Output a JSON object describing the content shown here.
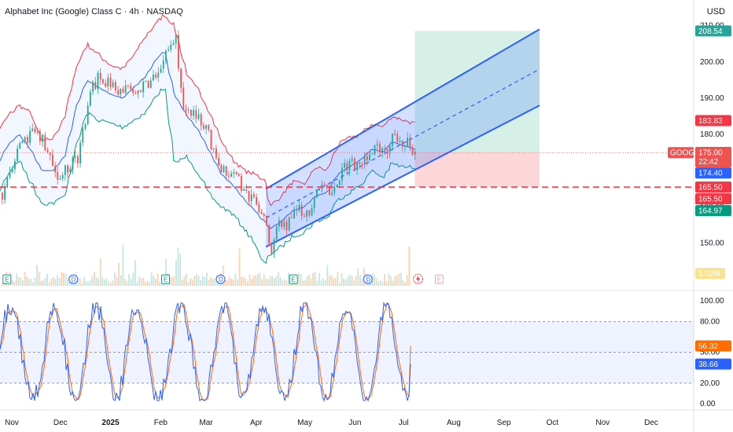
{
  "header": {
    "title": "Alphabet Inc (Google) Class C · 4h · NASDAQ",
    "currency": "USD"
  },
  "colors": {
    "up": "#26a69a",
    "down": "#ef5350",
    "channel": "#2962ff",
    "bb_upper": "#f23645",
    "bb_lower": "#089981",
    "bb_basis": "#2962ff",
    "stoch_k": "#2962ff",
    "stoch_d": "#ff6d00",
    "target_zone": "#d1eee5",
    "stop_zone": "#fbd3d5",
    "support_line": "#f23645"
  },
  "chart_data": [
    {
      "type": "line",
      "name": "price",
      "title": "Alphabet Inc (Google) Class C · 4h · NASDAQ",
      "ylim": [
        143,
        211
      ],
      "y_ticks": [
        150,
        160,
        170,
        180,
        190,
        200,
        210
      ],
      "y_tick_labels": [
        "150.00",
        "160.00",
        "170.00",
        "180.00",
        "190.00",
        "200.00",
        "210.00"
      ],
      "x_labels": [
        "Nov",
        "Dec",
        "2025",
        "Feb",
        "Mar",
        "Apr",
        "May",
        "Jun",
        "Jul",
        "Aug",
        "Sep",
        "Oct",
        "Nov",
        "Dec"
      ],
      "x_dates": [
        "2024-11-01",
        "2024-12-01",
        "2025-01-01",
        "2025-02-01",
        "2025-03-01",
        "2025-04-01",
        "2025-05-01",
        "2025-06-01",
        "2025-07-01",
        "2025-08-01",
        "2025-09-01",
        "2025-10-01",
        "2025-11-01",
        "2025-12-01"
      ],
      "price_path": {
        "dates": [
          "2024-10-16",
          "2024-10-23",
          "2024-10-30",
          "2024-11-06",
          "2024-11-13",
          "2024-11-20",
          "2024-11-27",
          "2024-12-04",
          "2024-12-11",
          "2024-12-18",
          "2024-12-25",
          "2025-01-02",
          "2025-01-09",
          "2025-01-16",
          "2025-01-23",
          "2025-01-30",
          "2025-02-04",
          "2025-02-10",
          "2025-02-18",
          "2025-02-25",
          "2025-03-04",
          "2025-03-11",
          "2025-03-18",
          "2025-03-25",
          "2025-04-01",
          "2025-04-04",
          "2025-04-07",
          "2025-04-10",
          "2025-04-17",
          "2025-04-24",
          "2025-05-01",
          "2025-05-08",
          "2025-05-15",
          "2025-05-22",
          "2025-05-29",
          "2025-06-05",
          "2025-06-12",
          "2025-06-19",
          "2025-06-24",
          "2025-07-01",
          "2025-07-08"
        ],
        "close": [
          164,
          172,
          178,
          182,
          176,
          168,
          170,
          174,
          191,
          197,
          193,
          192,
          191,
          194,
          197,
          203,
          207,
          185,
          186,
          180,
          172,
          169,
          166,
          162,
          157,
          154,
          148,
          156,
          155,
          160,
          158,
          165,
          163,
          170,
          172,
          173,
          177,
          176,
          180,
          178,
          175
        ]
      },
      "bollinger": {
        "upper": [
          172,
          180,
          185,
          188,
          186,
          178,
          179,
          185,
          198,
          205,
          202,
          199,
          198,
          202,
          207,
          211,
          213,
          210,
          196,
          192,
          186,
          178,
          173,
          170,
          169,
          168,
          168,
          160,
          163,
          167,
          166,
          171,
          170,
          177,
          179,
          180,
          183,
          182,
          185,
          184,
          183
        ],
        "lower": [
          158,
          163,
          169,
          173,
          167,
          161,
          161,
          163,
          176,
          186,
          184,
          183,
          182,
          184,
          186,
          191,
          193,
          172,
          174,
          169,
          163,
          160,
          158,
          154,
          150,
          146,
          144,
          147,
          149,
          152,
          153,
          156,
          157,
          162,
          164,
          166,
          170,
          168,
          172,
          171,
          171
        ],
        "basis": [
          165,
          171,
          177,
          180,
          176,
          170,
          170,
          174,
          187,
          195,
          193,
          191,
          190,
          193,
          196,
          201,
          203,
          191,
          185,
          181,
          175,
          169,
          166,
          162,
          159,
          157,
          156,
          154,
          156,
          159,
          160,
          163,
          164,
          169,
          171,
          173,
          176,
          175,
          178,
          177,
          176
        ]
      },
      "price_labels": {
        "target": "208.54",
        "upper_band": "183.83",
        "last_close": "175.05",
        "ticker": "GOOG",
        "current_price": "175.00",
        "countdown": "22:42",
        "basis": "174.40",
        "support_1": "165.50",
        "support_2": "165.50",
        "lower_band": "164.97",
        "volume": "1.02M"
      },
      "levels": {
        "target": 208.54,
        "upper_band": 183.83,
        "last": 175.05,
        "current": 175.0,
        "basis": 174.4,
        "support": 165.5,
        "lower_band": 164.97
      },
      "channel": {
        "start_date": "2025-04-07",
        "end_date": "2025-09-23",
        "upper": [
          165,
          209
        ],
        "middle": [
          157,
          198
        ],
        "lower": [
          149,
          188
        ]
      },
      "position": {
        "start_date": "2025-07-08",
        "end_date": "2025-09-23",
        "entry": 175.0,
        "target": 208.54,
        "stop": 165.5
      },
      "events": [
        {
          "label": "E",
          "date": "2024-10-29"
        },
        {
          "label": "D",
          "date": "2024-12-09"
        },
        {
          "label": "E",
          "date": "2025-02-04"
        },
        {
          "label": "D",
          "date": "2025-03-10"
        },
        {
          "label": "E",
          "date": "2025-04-24"
        },
        {
          "label": "D",
          "date": "2025-06-09"
        },
        {
          "label": "E",
          "date": "2025-07-23"
        }
      ]
    },
    {
      "type": "line",
      "name": "stochastic",
      "ylim": [
        -3,
        107
      ],
      "y_ticks": [
        0,
        20,
        50,
        80,
        100
      ],
      "y_tick_labels": [
        "0.00",
        "20.00",
        "50.00",
        "80.00",
        "100.00"
      ],
      "bands": [
        20,
        80
      ],
      "labels": {
        "k": "38.66",
        "d": "56.32"
      },
      "last_values": {
        "k": 38.66,
        "d": 56.32
      }
    }
  ]
}
